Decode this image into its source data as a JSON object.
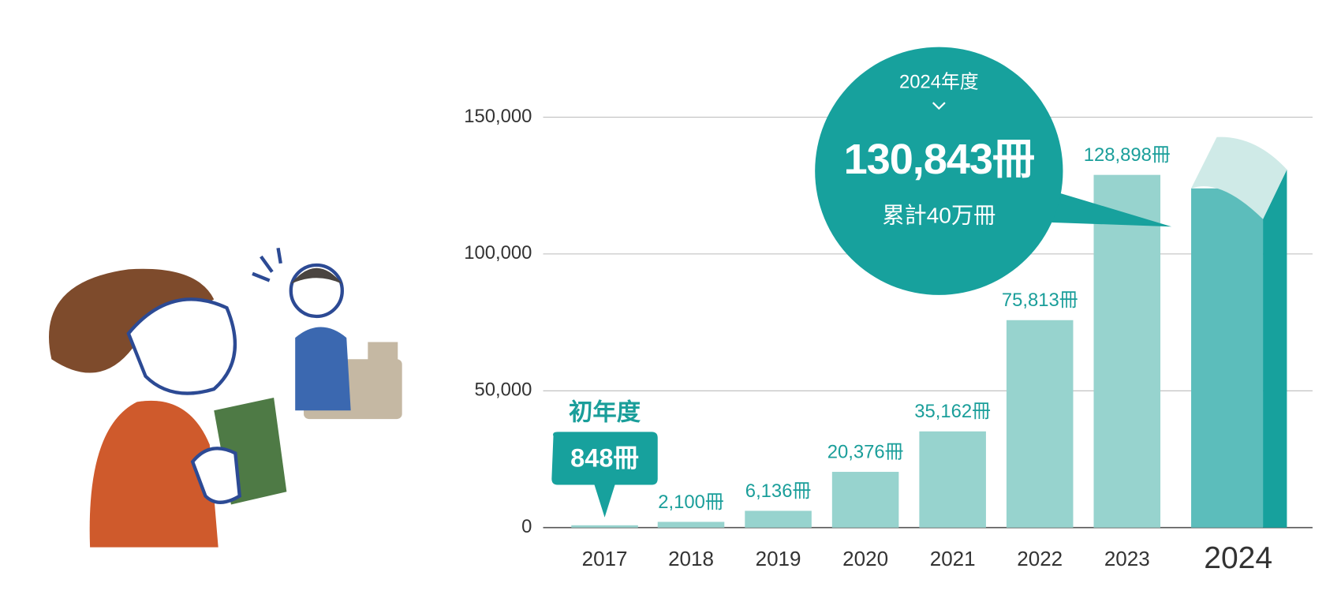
{
  "chart_data": {
    "type": "bar",
    "categories": [
      "2017",
      "2018",
      "2019",
      "2020",
      "2021",
      "2022",
      "2023",
      "2024"
    ],
    "values": [
      848,
      2100,
      6136,
      20376,
      35162,
      75813,
      128898,
      130843
    ],
    "value_labels": [
      "848冊",
      "2,100冊",
      "6,136冊",
      "20,376冊",
      "35,162冊",
      "75,813冊",
      "128,898冊",
      "130,843冊"
    ],
    "color": "#97d3ce",
    "highlight_color": "#17a19d",
    "label_color": "#1a9e9a",
    "ylim": [
      0,
      150000
    ],
    "yticks": [
      0,
      {
        "value": 50000,
        "label": "50,000"
      },
      {
        "value": 100000,
        "label": "100,000"
      },
      {
        "value": 150000,
        "label": "150,000"
      }
    ],
    "grid": true,
    "annotations": {
      "first_year": "初年度",
      "highlight_year": "2024年度",
      "cumulative": "累計40万冊"
    }
  }
}
